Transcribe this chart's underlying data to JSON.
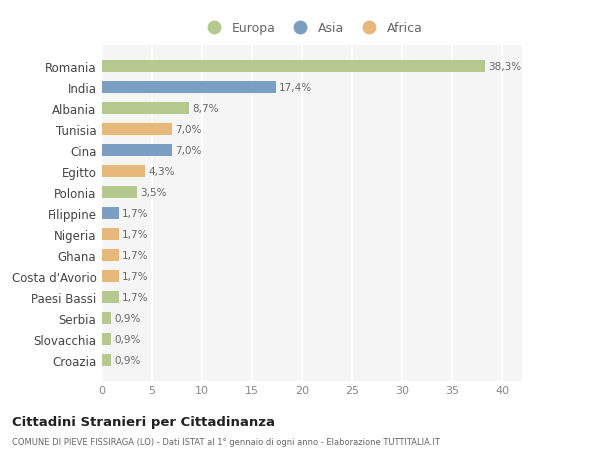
{
  "countries": [
    "Croazia",
    "Slovacchia",
    "Serbia",
    "Paesi Bassi",
    "Costa d'Avorio",
    "Ghana",
    "Nigeria",
    "Filippine",
    "Polonia",
    "Egitto",
    "Cina",
    "Tunisia",
    "Albania",
    "India",
    "Romania"
  ],
  "values": [
    0.9,
    0.9,
    0.9,
    1.7,
    1.7,
    1.7,
    1.7,
    1.7,
    3.5,
    4.3,
    7.0,
    7.0,
    8.7,
    17.4,
    38.3
  ],
  "labels": [
    "0,9%",
    "0,9%",
    "0,9%",
    "1,7%",
    "1,7%",
    "1,7%",
    "1,7%",
    "1,7%",
    "3,5%",
    "4,3%",
    "7,0%",
    "7,0%",
    "8,7%",
    "17,4%",
    "38,3%"
  ],
  "continents": [
    "Europa",
    "Europa",
    "Europa",
    "Europa",
    "Africa",
    "Africa",
    "Africa",
    "Asia",
    "Europa",
    "Africa",
    "Asia",
    "Africa",
    "Europa",
    "Asia",
    "Europa"
  ],
  "continent_colors": {
    "Europa": "#b5c98e",
    "Asia": "#7a9fc2",
    "Africa": "#e8b87a"
  },
  "background_color": "#ffffff",
  "plot_bg_color": "#f5f5f5",
  "title": "Cittadini Stranieri per Cittadinanza",
  "subtitle": "COMUNE DI PIEVE FISSIRAGA (LO) - Dati ISTAT al 1° gennaio di ogni anno - Elaborazione TUTTITALIA.IT",
  "xlim": [
    0,
    42
  ],
  "xticks": [
    0,
    5,
    10,
    15,
    20,
    25,
    30,
    35,
    40
  ]
}
